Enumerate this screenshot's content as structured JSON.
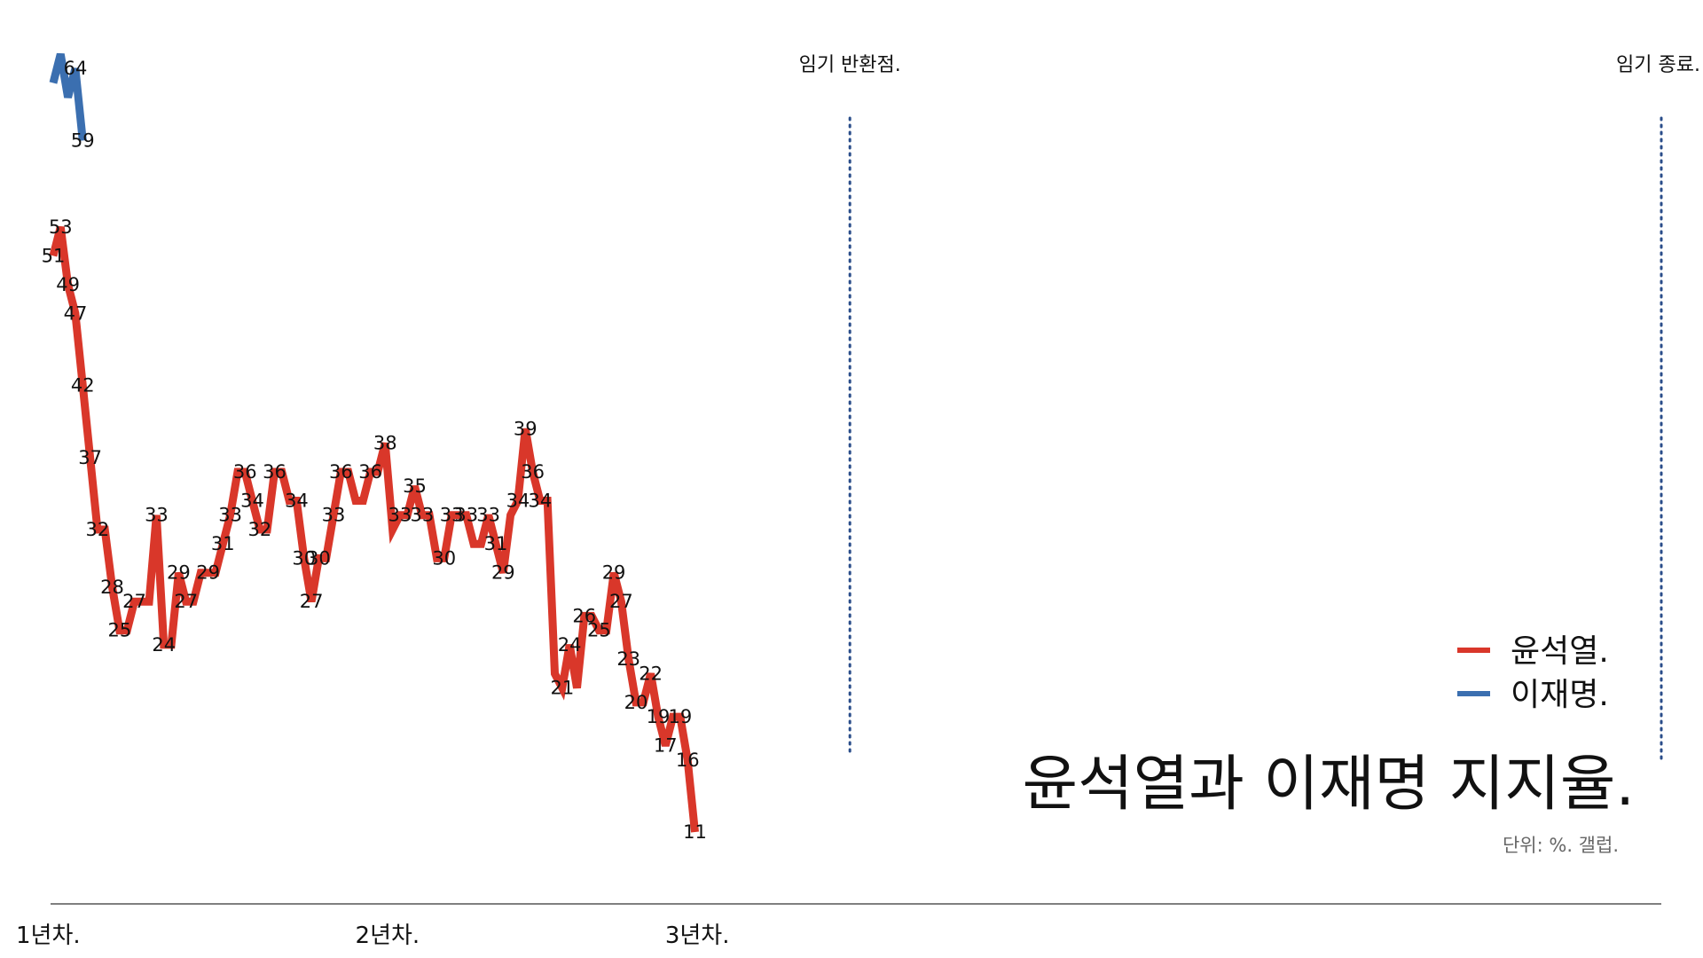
{
  "chart_data": {
    "type": "line",
    "title": "윤석열과 이재명 지지율.",
    "subtitle": "단위: %. 갤럽.",
    "x_ticks": [
      {
        "label": "1년차.",
        "x": 0
      },
      {
        "label": "2년차.",
        "x": 46
      },
      {
        "label": "3년차.",
        "x": 88
      }
    ],
    "markers": [
      {
        "label": "임기 반환점.",
        "x": 108
      },
      {
        "label": "임기 종료.",
        "x": 218
      }
    ],
    "xlim": [
      0,
      218
    ],
    "ylim": [
      7,
      65
    ],
    "colors": {
      "윤석열": "#d9372a",
      "이재명": "#3b6fb0"
    },
    "series": [
      {
        "name": "윤석열.",
        "color": "#d9372a",
        "values": [
          51,
          53,
          49,
          47,
          42,
          37,
          32,
          32,
          28,
          25,
          25,
          27,
          27,
          27,
          33,
          24,
          24,
          29,
          27,
          27,
          29,
          29,
          29,
          31,
          33,
          36,
          36,
          34,
          32,
          32,
          36,
          36,
          34,
          34,
          30,
          27,
          30,
          30,
          33,
          36,
          36,
          34,
          34,
          36,
          36,
          38,
          32,
          33,
          33,
          35,
          33,
          33,
          30,
          30,
          33,
          33,
          33,
          31,
          31,
          33,
          31,
          29,
          33,
          34,
          39,
          36,
          34,
          34,
          22,
          21,
          24,
          21,
          26,
          26,
          25,
          25,
          29,
          27,
          23,
          20,
          20,
          22,
          19,
          17,
          19,
          19,
          16,
          11
        ],
        "labels": [
          51,
          53,
          49,
          47,
          42,
          37,
          32,
          null,
          28,
          25,
          null,
          27,
          null,
          null,
          33,
          24,
          null,
          29,
          27,
          null,
          null,
          29,
          null,
          31,
          33,
          null,
          36,
          34,
          32,
          null,
          36,
          null,
          null,
          34,
          30,
          27,
          30,
          null,
          33,
          36,
          null,
          null,
          null,
          36,
          null,
          38,
          null,
          33,
          null,
          35,
          33,
          null,
          null,
          30,
          33,
          null,
          33,
          null,
          null,
          33,
          31,
          29,
          null,
          34,
          39,
          36,
          34,
          null,
          null,
          21,
          24,
          null,
          26,
          null,
          25,
          null,
          29,
          27,
          23,
          20,
          null,
          22,
          19,
          17,
          null,
          19,
          16,
          11
        ]
      },
      {
        "name": "이재명.",
        "color": "#3b6fb0",
        "values": [
          63,
          65,
          62,
          64,
          59
        ],
        "labels": [
          null,
          null,
          null,
          64,
          59
        ]
      }
    ]
  }
}
